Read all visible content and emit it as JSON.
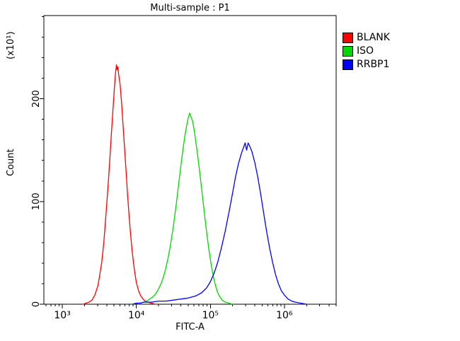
{
  "title": "Multi-sample : P1",
  "axes": {
    "x_label": "FITC-A",
    "y_label": "Count",
    "y_unit_label": "(x10¹)"
  },
  "legend": {
    "items": [
      {
        "label": "BLANK",
        "color": "#ff0000"
      },
      {
        "label": "ISO",
        "color": "#00d800"
      },
      {
        "label": "RRBP1",
        "color": "#0000ff"
      }
    ]
  },
  "chart_data": {
    "type": "line",
    "subtype": "flow-cytometry-histogram-overlay",
    "title": "Multi-sample : P1",
    "xlabel": "FITC-A",
    "ylabel": "Count",
    "y_unit": "x10^1",
    "x_scale": "log10",
    "xlim_log10": [
      2.75,
      6.7
    ],
    "ylim": [
      0,
      281
    ],
    "x_major_ticks_log10": [
      3,
      4,
      5,
      6
    ],
    "x_tick_labels": [
      "10³",
      "10⁴",
      "10⁵",
      "10⁶"
    ],
    "y_major_ticks": [
      0,
      100,
      200
    ],
    "y_tick_labels": [
      "0",
      "100",
      "200"
    ],
    "y_minor_step": 20,
    "grid": false,
    "legend_position": "top-right-outside",
    "series": [
      {
        "name": "BLANK",
        "color": "#ff0000",
        "peak_x_approx": 5300,
        "peak_count_approx": 233,
        "points": [
          [
            3.28,
            0
          ],
          [
            3.32,
            1
          ],
          [
            3.36,
            2
          ],
          [
            3.4,
            4
          ],
          [
            3.44,
            9
          ],
          [
            3.48,
            18
          ],
          [
            3.5,
            26
          ],
          [
            3.53,
            40
          ],
          [
            3.56,
            60
          ],
          [
            3.59,
            88
          ],
          [
            3.62,
            118
          ],
          [
            3.64,
            140
          ],
          [
            3.66,
            163
          ],
          [
            3.68,
            185
          ],
          [
            3.7,
            207
          ],
          [
            3.71,
            218
          ],
          [
            3.72,
            226
          ],
          [
            3.73,
            233
          ],
          [
            3.74,
            228
          ],
          [
            3.75,
            231
          ],
          [
            3.76,
            224
          ],
          [
            3.78,
            214
          ],
          [
            3.8,
            196
          ],
          [
            3.82,
            174
          ],
          [
            3.84,
            152
          ],
          [
            3.86,
            130
          ],
          [
            3.88,
            108
          ],
          [
            3.9,
            88
          ],
          [
            3.92,
            70
          ],
          [
            3.94,
            54
          ],
          [
            3.96,
            41
          ],
          [
            3.98,
            30
          ],
          [
            4.0,
            21
          ],
          [
            4.03,
            13
          ],
          [
            4.06,
            8
          ],
          [
            4.09,
            5
          ],
          [
            4.12,
            3
          ],
          [
            4.16,
            2
          ],
          [
            4.2,
            1
          ],
          [
            4.26,
            0
          ]
        ]
      },
      {
        "name": "ISO",
        "color": "#00d800",
        "peak_x_approx": 52000,
        "peak_count_approx": 186,
        "points": [
          [
            3.95,
            0
          ],
          [
            4.0,
            1
          ],
          [
            4.05,
            1
          ],
          [
            4.1,
            2
          ],
          [
            4.14,
            3
          ],
          [
            4.18,
            5
          ],
          [
            4.22,
            7
          ],
          [
            4.26,
            10
          ],
          [
            4.3,
            15
          ],
          [
            4.34,
            21
          ],
          [
            4.38,
            30
          ],
          [
            4.42,
            42
          ],
          [
            4.46,
            57
          ],
          [
            4.5,
            76
          ],
          [
            4.54,
            98
          ],
          [
            4.58,
            122
          ],
          [
            4.61,
            140
          ],
          [
            4.64,
            156
          ],
          [
            4.66,
            166
          ],
          [
            4.68,
            174
          ],
          [
            4.7,
            181
          ],
          [
            4.72,
            186
          ],
          [
            4.74,
            182
          ],
          [
            4.76,
            178
          ],
          [
            4.78,
            170
          ],
          [
            4.8,
            160
          ],
          [
            4.83,
            144
          ],
          [
            4.86,
            126
          ],
          [
            4.89,
            107
          ],
          [
            4.92,
            88
          ],
          [
            4.95,
            70
          ],
          [
            4.98,
            53
          ],
          [
            5.01,
            39
          ],
          [
            5.04,
            27
          ],
          [
            5.07,
            18
          ],
          [
            5.1,
            11
          ],
          [
            5.13,
            7
          ],
          [
            5.16,
            4
          ],
          [
            5.2,
            2
          ],
          [
            5.25,
            1
          ],
          [
            5.3,
            0
          ]
        ]
      },
      {
        "name": "RRBP1",
        "color": "#0000ff",
        "peak_x_approx": 310000,
        "peak_count_approx": 157,
        "points": [
          [
            3.95,
            0
          ],
          [
            4.0,
            1
          ],
          [
            4.05,
            1
          ],
          [
            4.1,
            2
          ],
          [
            4.2,
            2
          ],
          [
            4.3,
            3
          ],
          [
            4.4,
            3
          ],
          [
            4.5,
            4
          ],
          [
            4.6,
            5
          ],
          [
            4.7,
            6
          ],
          [
            4.8,
            8
          ],
          [
            4.88,
            11
          ],
          [
            4.95,
            16
          ],
          [
            5.0,
            22
          ],
          [
            5.05,
            30
          ],
          [
            5.1,
            41
          ],
          [
            5.15,
            55
          ],
          [
            5.2,
            71
          ],
          [
            5.25,
            89
          ],
          [
            5.3,
            108
          ],
          [
            5.34,
            124
          ],
          [
            5.38,
            137
          ],
          [
            5.42,
            147
          ],
          [
            5.45,
            153
          ],
          [
            5.47,
            157
          ],
          [
            5.49,
            150
          ],
          [
            5.51,
            157
          ],
          [
            5.53,
            154
          ],
          [
            5.56,
            149
          ],
          [
            5.6,
            138
          ],
          [
            5.64,
            124
          ],
          [
            5.68,
            107
          ],
          [
            5.72,
            89
          ],
          [
            5.76,
            71
          ],
          [
            5.8,
            55
          ],
          [
            5.84,
            41
          ],
          [
            5.88,
            29
          ],
          [
            5.92,
            20
          ],
          [
            5.96,
            13
          ],
          [
            6.0,
            9
          ],
          [
            6.05,
            5
          ],
          [
            6.1,
            3
          ],
          [
            6.15,
            2
          ],
          [
            6.22,
            1
          ],
          [
            6.3,
            0
          ]
        ]
      }
    ]
  }
}
